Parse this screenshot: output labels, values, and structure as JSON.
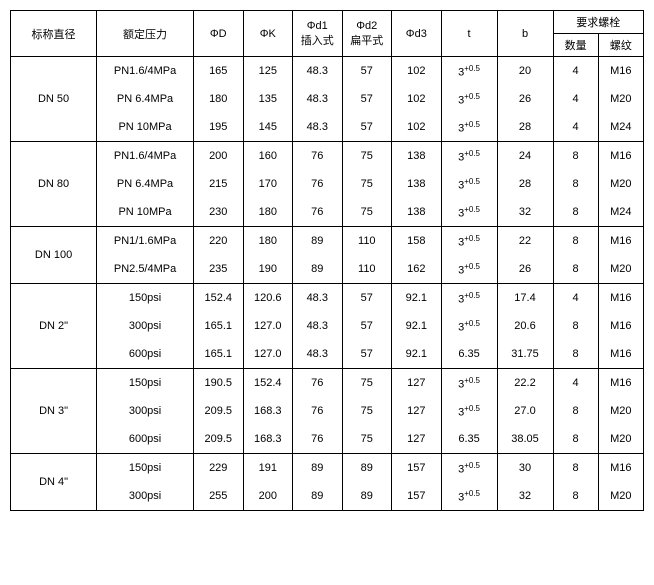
{
  "headers": {
    "nominal": "标称直径",
    "pressure": "额定压力",
    "phiD": "ΦD",
    "phiK": "ΦK",
    "phid1_a": "Φd1",
    "phid1_b": "插入式",
    "phid2_a": "Φd2",
    "phid2_b": "扁平式",
    "phid3": "Φd3",
    "t": "t",
    "b": "b",
    "bolt": "要求螺栓",
    "qty": "数量",
    "thread": "螺纹"
  },
  "groups": [
    {
      "nominal": "DN 50",
      "rows": [
        {
          "press": "PN1.6/4MPa",
          "D": "165",
          "K": "125",
          "d1": "48.3",
          "d2": "57",
          "d3": "102",
          "t": "3",
          "tsup": "+0.5",
          "b": "20",
          "qty": "4",
          "thr": "M16"
        },
        {
          "press": "PN 6.4MPa",
          "D": "180",
          "K": "135",
          "d1": "48.3",
          "d2": "57",
          "d3": "102",
          "t": "3",
          "tsup": "+0.5",
          "b": "26",
          "qty": "4",
          "thr": "M20"
        },
        {
          "press": "PN 10MPa",
          "D": "195",
          "K": "145",
          "d1": "48.3",
          "d2": "57",
          "d3": "102",
          "t": "3",
          "tsup": "+0.5",
          "b": "28",
          "qty": "4",
          "thr": "M24"
        }
      ]
    },
    {
      "nominal": "DN 80",
      "rows": [
        {
          "press": "PN1.6/4MPa",
          "D": "200",
          "K": "160",
          "d1": "76",
          "d2": "75",
          "d3": "138",
          "t": "3",
          "tsup": "+0.5",
          "b": "24",
          "qty": "8",
          "thr": "M16"
        },
        {
          "press": "PN 6.4MPa",
          "D": "215",
          "K": "170",
          "d1": "76",
          "d2": "75",
          "d3": "138",
          "t": "3",
          "tsup": "+0.5",
          "b": "28",
          "qty": "8",
          "thr": "M20"
        },
        {
          "press": "PN 10MPa",
          "D": "230",
          "K": "180",
          "d1": "76",
          "d2": "75",
          "d3": "138",
          "t": "3",
          "tsup": "+0.5",
          "b": "32",
          "qty": "8",
          "thr": "M24"
        }
      ]
    },
    {
      "nominal": "DN 100",
      "rows": [
        {
          "press": "PN1/1.6MPa",
          "D": "220",
          "K": "180",
          "d1": "89",
          "d2": "110",
          "d3": "158",
          "t": "3",
          "tsup": "+0.5",
          "b": "22",
          "qty": "8",
          "thr": "M16"
        },
        {
          "press": "PN2.5/4MPa",
          "D": "235",
          "K": "190",
          "d1": "89",
          "d2": "110",
          "d3": "162",
          "t": "3",
          "tsup": "+0.5",
          "b": "26",
          "qty": "8",
          "thr": "M20"
        }
      ]
    },
    {
      "nominal": "DN 2\"",
      "rows": [
        {
          "press": "150psi",
          "D": "152.4",
          "K": "120.6",
          "d1": "48.3",
          "d2": "57",
          "d3": "92.1",
          "t": "3",
          "tsup": "+0.5",
          "b": "17.4",
          "qty": "4",
          "thr": "M16"
        },
        {
          "press": "300psi",
          "D": "165.1",
          "K": "127.0",
          "d1": "48.3",
          "d2": "57",
          "d3": "92.1",
          "t": "3",
          "tsup": "+0.5",
          "b": "20.6",
          "qty": "8",
          "thr": "M16"
        },
        {
          "press": "600psi",
          "D": "165.1",
          "K": "127.0",
          "d1": "48.3",
          "d2": "57",
          "d3": "92.1",
          "t": "6.35",
          "tsup": "",
          "b": "31.75",
          "qty": "8",
          "thr": "M16"
        }
      ]
    },
    {
      "nominal": "DN 3\"",
      "rows": [
        {
          "press": "150psi",
          "D": "190.5",
          "K": "152.4",
          "d1": "76",
          "d2": "75",
          "d3": "127",
          "t": "3",
          "tsup": "+0.5",
          "b": "22.2",
          "qty": "4",
          "thr": "M16"
        },
        {
          "press": "300psi",
          "D": "209.5",
          "K": "168.3",
          "d1": "76",
          "d2": "75",
          "d3": "127",
          "t": "3",
          "tsup": "+0.5",
          "b": "27.0",
          "qty": "8",
          "thr": "M20"
        },
        {
          "press": "600psi",
          "D": "209.5",
          "K": "168.3",
          "d1": "76",
          "d2": "75",
          "d3": "127",
          "t": "6.35",
          "tsup": "",
          "b": "38.05",
          "qty": "8",
          "thr": "M20"
        }
      ]
    },
    {
      "nominal": "DN 4\"",
      "rows": [
        {
          "press": "150psi",
          "D": "229",
          "K": "191",
          "d1": "89",
          "d2": "89",
          "d3": "157",
          "t": "3",
          "tsup": "+0.5",
          "b": "30",
          "qty": "8",
          "thr": "M16"
        },
        {
          "press": "300psi",
          "D": "255",
          "K": "200",
          "d1": "89",
          "d2": "89",
          "d3": "157",
          "t": "3",
          "tsup": "+0.5",
          "b": "32",
          "qty": "8",
          "thr": "M20"
        }
      ]
    }
  ]
}
